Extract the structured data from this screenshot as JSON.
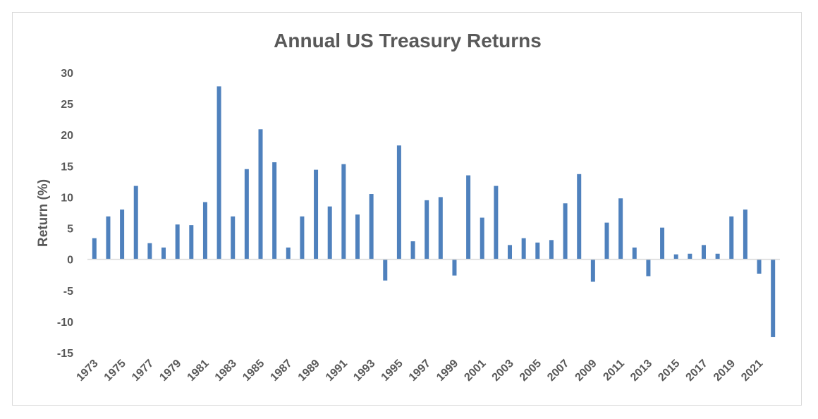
{
  "chart_data": {
    "type": "bar",
    "title": "Annual US Treasury Returns",
    "xlabel": "",
    "ylabel": "Return (%)",
    "ylim": [
      -15,
      30
    ],
    "yticks": [
      30,
      25,
      20,
      15,
      10,
      5,
      0,
      -5,
      -10,
      -15
    ],
    "grid": false,
    "legend": "none",
    "bar_color": "#4f81bd",
    "axis_color": "#d9d9d9",
    "text_color": "#595959",
    "xtick_labels": [
      "1973",
      "1975",
      "1977",
      "1979",
      "1981",
      "1983",
      "1985",
      "1987",
      "1989",
      "1991",
      "1993",
      "1995",
      "1997",
      "1999",
      "2001",
      "2003",
      "2005",
      "2007",
      "2009",
      "2011",
      "2013",
      "2015",
      "2017",
      "2019",
      "2021"
    ],
    "categories": [
      "1973",
      "1974",
      "1975",
      "1976",
      "1977",
      "1978",
      "1979",
      "1980",
      "1981",
      "1982",
      "1983",
      "1984",
      "1985",
      "1986",
      "1987",
      "1988",
      "1989",
      "1990",
      "1991",
      "1992",
      "1993",
      "1994",
      "1995",
      "1996",
      "1997",
      "1998",
      "1999",
      "2000",
      "2001",
      "2002",
      "2003",
      "2004",
      "2005",
      "2006",
      "2007",
      "2008",
      "2009",
      "2010",
      "2011",
      "2012",
      "2013",
      "2014",
      "2015",
      "2016",
      "2017",
      "2018",
      "2019",
      "2020",
      "2021",
      "2022"
    ],
    "values": [
      3.4,
      6.9,
      8.0,
      11.8,
      2.6,
      1.9,
      5.6,
      5.5,
      9.2,
      27.8,
      6.9,
      14.5,
      20.9,
      15.6,
      1.9,
      6.9,
      14.4,
      8.5,
      15.3,
      7.2,
      10.5,
      -3.4,
      18.3,
      2.9,
      9.5,
      10.0,
      -2.6,
      13.5,
      6.7,
      11.8,
      2.3,
      3.4,
      2.7,
      3.1,
      9.0,
      13.7,
      -3.6,
      5.9,
      9.8,
      1.9,
      -2.7,
      5.1,
      0.8,
      0.9,
      2.3,
      0.9,
      6.9,
      8.0,
      -2.3,
      -12.5
    ]
  }
}
